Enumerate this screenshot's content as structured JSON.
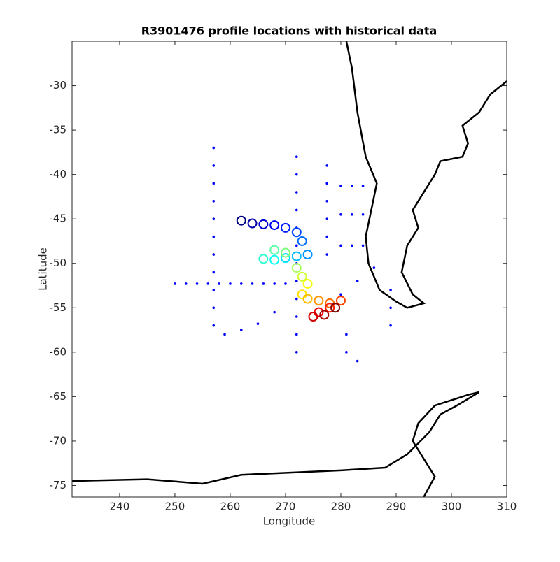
{
  "chart_data": {
    "type": "scatter",
    "title": "R3901476 profile locations with historical data",
    "x_label": "Longitude",
    "y_label": "Latitude",
    "xlim": [
      231.4,
      310
    ],
    "ylim": [
      -76.3,
      -25
    ],
    "xticks": [
      240,
      250,
      260,
      270,
      280,
      290,
      300,
      310
    ],
    "yticks": [
      -30,
      -35,
      -40,
      -45,
      -50,
      -55,
      -60,
      -65,
      -70,
      -75
    ],
    "series": [
      {
        "style": "line",
        "color": "#000000",
        "x": [
          281,
          282,
          283,
          284.5,
          286.5,
          285.5,
          284.5,
          285,
          287,
          290,
          292,
          295,
          293,
          291,
          292,
          294,
          293,
          295,
          297,
          298,
          302,
          303,
          302,
          305,
          307,
          310,
          null,
          231.4,
          245,
          255,
          262,
          280,
          288,
          292,
          296,
          298,
          301,
          305,
          303,
          297,
          294,
          293,
          295,
          297,
          295
        ],
        "y": [
          -25,
          -28,
          -33,
          -38,
          -41,
          -44,
          -47,
          -50,
          -53,
          -54.3,
          -55,
          -54.5,
          -53.5,
          -51,
          -48,
          -46,
          -44,
          -42,
          -40,
          -38.5,
          -38,
          -36.5,
          -34.5,
          -33,
          -31,
          -29.5,
          null,
          -74.5,
          -74.3,
          -74.8,
          -73.8,
          -73.3,
          -73,
          -71.5,
          -69,
          -67,
          -66,
          -64.5,
          -64.8,
          -66,
          -68,
          -70,
          -72,
          -74,
          -76.3
        ]
      },
      {
        "style": "dot",
        "color": "#0000ff",
        "x": [
          257,
          257,
          257,
          257,
          257,
          257,
          257,
          257,
          257,
          257,
          257,
          272,
          272,
          272,
          272,
          272,
          272,
          272,
          272,
          272,
          272,
          272,
          272,
          277.5,
          277.5,
          277.5,
          277.5,
          277.5,
          277.5,
          250,
          252,
          254,
          256,
          258,
          260,
          262,
          264,
          266,
          268,
          270,
          280,
          282,
          284,
          280,
          282,
          284,
          280,
          282,
          284,
          259,
          262,
          265,
          268,
          280,
          283,
          286,
          289,
          289,
          289,
          281,
          281,
          283
        ],
        "y": [
          -37,
          -39,
          -41,
          -43,
          -45,
          -47,
          -49,
          -51,
          -53,
          -55,
          -57,
          -38,
          -40,
          -42,
          -44,
          -46,
          -48,
          -50,
          -52,
          -54,
          -56,
          -58,
          -60,
          -39,
          -41,
          -43,
          -45,
          -47,
          -49,
          -52.3,
          -52.3,
          -52.3,
          -52.3,
          -52.3,
          -52.3,
          -52.3,
          -52.3,
          -52.3,
          -52.3,
          -52.3,
          -41.3,
          -41.3,
          -41.3,
          -44.5,
          -44.5,
          -44.5,
          -48,
          -48,
          -48,
          -58,
          -57.5,
          -56.8,
          -55.5,
          -53.5,
          -52,
          -50.5,
          -53,
          -55,
          -57,
          -58,
          -60,
          -61
        ]
      },
      {
        "style": "profile",
        "colormap": "jet",
        "x": [
          262,
          264,
          266,
          268,
          270,
          272,
          273,
          274,
          272,
          270,
          268,
          266,
          268,
          270,
          272,
          273,
          274,
          273,
          274,
          276,
          278,
          280,
          278,
          276,
          275,
          277,
          279
        ],
        "y": [
          -45.2,
          -45.5,
          -45.6,
          -45.7,
          -46,
          -46.5,
          -47.5,
          -49,
          -49.2,
          -49.4,
          -49.6,
          -49.5,
          -48.5,
          -48.8,
          -50.5,
          -51.5,
          -52.3,
          -53.5,
          -54,
          -54.2,
          -54.5,
          -54.2,
          -55,
          -55.5,
          -56,
          -55.8,
          -55
        ]
      }
    ]
  }
}
